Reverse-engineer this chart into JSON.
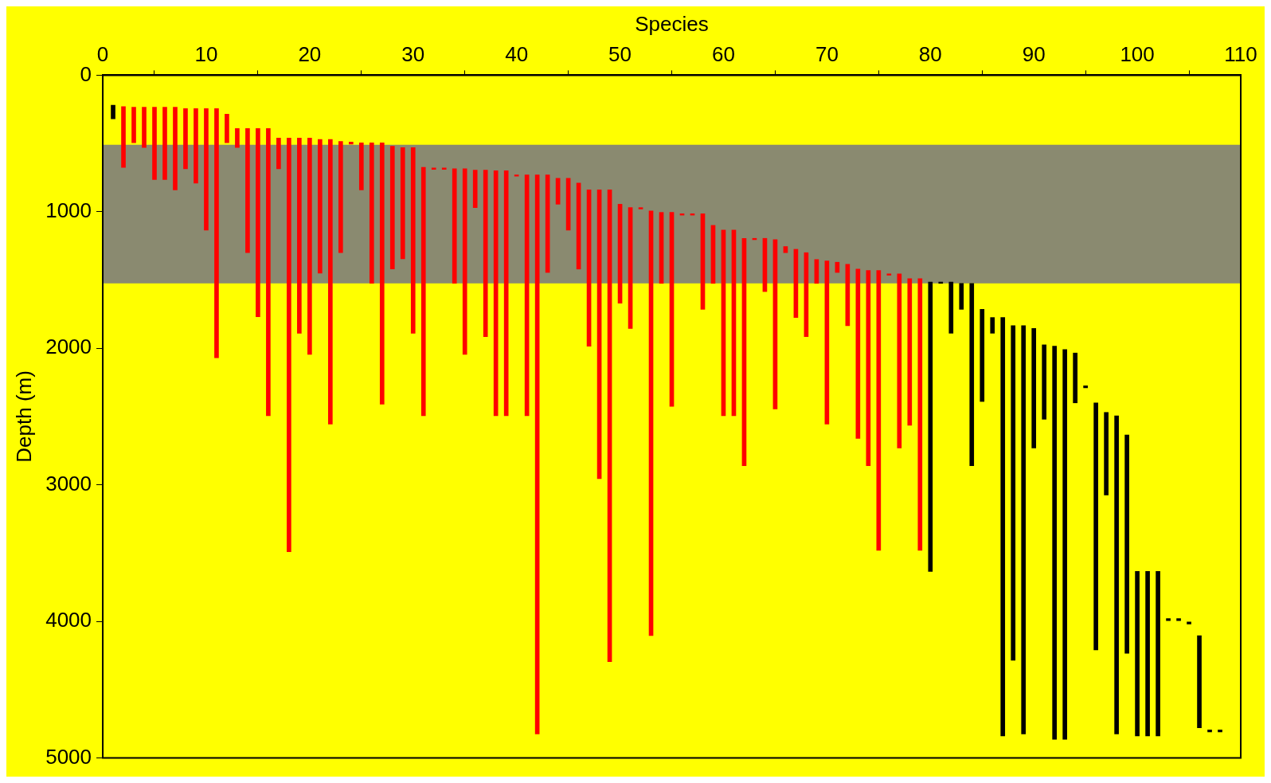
{
  "chart_data": {
    "type": "bar",
    "xlabel": "Species",
    "ylabel": "Depth (m)",
    "xlim": [
      0,
      110
    ],
    "xticks": [
      0,
      10,
      20,
      30,
      40,
      50,
      60,
      70,
      80,
      90,
      100,
      110
    ],
    "ylim": [
      5000,
      0
    ],
    "yticks": [
      0,
      1000,
      2000,
      3000,
      4000,
      5000
    ],
    "grid": false,
    "legend": false,
    "series": [
      {
        "color": "#000000",
        "x": [
          1,
          80,
          81,
          82,
          83,
          84,
          85,
          86,
          87,
          88,
          89,
          90,
          91,
          92,
          93,
          94,
          95,
          96,
          97,
          98,
          99,
          100,
          101,
          102,
          103,
          104,
          105,
          106,
          107,
          108
        ],
        "base": [
          220,
          1515,
          1515,
          1515,
          1525,
          1525,
          1715,
          1775,
          1775,
          1835,
          1835,
          1855,
          1975,
          1985,
          2010,
          2035,
          2275,
          2400,
          2470,
          2495,
          2635,
          3635,
          3635,
          3635,
          3980,
          3980,
          4005,
          4105,
          4795,
          4795
        ],
        "values": [
          100,
          2120,
          10,
          375,
          190,
          1335,
          675,
          115,
          3065,
          2450,
          2990,
          875,
          545,
          2880,
          2855,
          365,
          15,
          1810,
          605,
          2330,
          1600,
          1205,
          1205,
          1205,
          15,
          15,
          15,
          675,
          15,
          15
        ]
      },
      {
        "color": "#ff0000",
        "x": [
          2,
          3,
          4,
          5,
          6,
          7,
          8,
          9,
          10,
          11,
          12,
          13,
          14,
          15,
          16,
          17,
          18,
          19,
          20,
          21,
          22,
          23,
          24,
          25,
          26,
          27,
          28,
          29,
          30,
          31,
          32,
          33,
          34,
          35,
          36,
          37,
          38,
          39,
          40,
          41,
          42,
          43,
          44,
          45,
          46,
          47,
          48,
          49,
          50,
          51,
          52,
          53,
          54,
          55,
          56,
          57,
          58,
          59,
          60,
          61,
          62,
          63,
          64,
          65,
          66,
          67,
          68,
          69,
          70,
          71,
          72,
          73,
          74,
          75,
          76,
          77,
          78,
          79
        ],
        "base": [
          230,
          235,
          235,
          235,
          235,
          235,
          245,
          245,
          245,
          245,
          285,
          390,
          390,
          390,
          390,
          460,
          460,
          460,
          460,
          470,
          470,
          485,
          490,
          495,
          495,
          495,
          520,
          530,
          530,
          675,
          680,
          680,
          685,
          685,
          695,
          695,
          700,
          700,
          730,
          730,
          730,
          730,
          755,
          755,
          790,
          840,
          840,
          840,
          945,
          970,
          970,
          995,
          1005,
          1005,
          1015,
          1015,
          1015,
          1100,
          1135,
          1135,
          1195,
          1195,
          1195,
          1205,
          1255,
          1275,
          1300,
          1350,
          1360,
          1370,
          1385,
          1420,
          1430,
          1430,
          1455,
          1455,
          1490,
          1490
        ],
        "values": [
          445,
          260,
          295,
          530,
          530,
          605,
          440,
          545,
          890,
          1825,
          210,
          140,
          910,
          1380,
          2105,
          225,
          3030,
          1430,
          1585,
          980,
          2085,
          815,
          15,
          345,
          1030,
          1915,
          900,
          815,
          1360,
          1820,
          10,
          10,
          840,
          1360,
          275,
          1220,
          1795,
          1795,
          10,
          1765,
          4095,
          715,
          190,
          380,
          630,
          1145,
          2115,
          3455,
          725,
          885,
          10,
          3110,
          520,
          1420,
          10,
          10,
          700,
          425,
          1360,
          1360,
          1665,
          10,
          390,
          1240,
          45,
          500,
          615,
          175,
          1195,
          75,
          450,
          1240,
          1430,
          2050,
          10,
          1275,
          1075,
          1990
        ]
      }
    ],
    "bands": [
      {
        "axis": "y",
        "from": 510,
        "to": 1525,
        "color": "#8a8a70"
      }
    ]
  }
}
